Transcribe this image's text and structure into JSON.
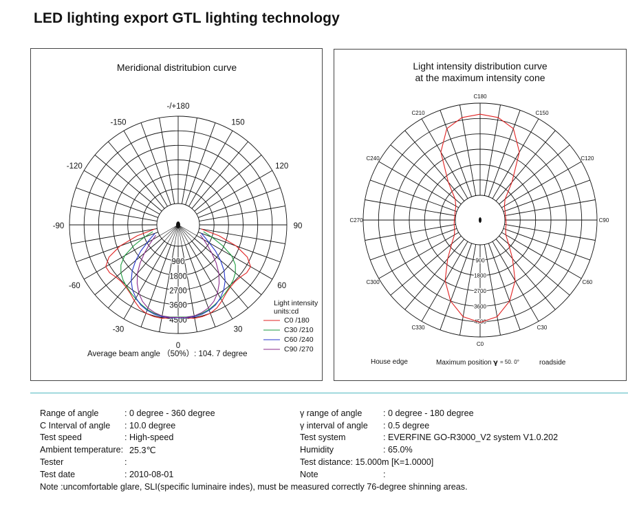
{
  "page_title": "LED lighting export GTL lighting technology",
  "colors": {
    "red": "#e02020",
    "green": "#1a9a3c",
    "blue": "#2233cc",
    "purple": "#8a2a8a",
    "divider": "#4fb8c0"
  },
  "chart_data": [
    {
      "type": "polar",
      "title": "Meridional distritubion curve",
      "angle_labels": [
        {
          "deg": 180,
          "text": "-/+180"
        },
        {
          "deg": -150,
          "text": "-150"
        },
        {
          "deg": 150,
          "text": "150"
        },
        {
          "deg": -120,
          "text": "-120"
        },
        {
          "deg": 120,
          "text": "120"
        },
        {
          "deg": -90,
          "text": "-90"
        },
        {
          "deg": 90,
          "text": "90"
        },
        {
          "deg": -60,
          "text": "-60"
        },
        {
          "deg": 60,
          "text": "60"
        },
        {
          "deg": -30,
          "text": "-30"
        },
        {
          "deg": 30,
          "text": "30"
        },
        {
          "deg": 0,
          "text": "0"
        }
      ],
      "radial_labels": [
        "900",
        "1800",
        "2700",
        "3600",
        "4500"
      ],
      "rmax": 5400,
      "legend_title": "Light intensity",
      "legend_units": "units:cd",
      "series": [
        {
          "name": "C0  /180",
          "color": "red",
          "points": [
            [
              -80,
              140
            ],
            [
              -75,
              1300
            ],
            [
              -70,
              2500
            ],
            [
              -65,
              3400
            ],
            [
              -60,
              3850
            ],
            [
              -55,
              3850
            ],
            [
              -50,
              3700
            ],
            [
              -45,
              3650
            ],
            [
              -40,
              3700
            ],
            [
              -35,
              3850
            ],
            [
              -30,
              4100
            ],
            [
              -25,
              4350
            ],
            [
              -20,
              4500
            ],
            [
              -15,
              4550
            ],
            [
              -10,
              4550
            ],
            [
              -5,
              4450
            ],
            [
              0,
              4400
            ],
            [
              5,
              4450
            ],
            [
              10,
              4550
            ],
            [
              15,
              4550
            ],
            [
              20,
              4500
            ],
            [
              25,
              4350
            ],
            [
              30,
              4100
            ],
            [
              35,
              3850
            ],
            [
              40,
              3700
            ],
            [
              45,
              3650
            ],
            [
              50,
              3700
            ],
            [
              55,
              3850
            ],
            [
              60,
              3850
            ],
            [
              65,
              3400
            ],
            [
              70,
              2500
            ],
            [
              75,
              1300
            ],
            [
              80,
              140
            ]
          ]
        },
        {
          "name": "C30  /210",
          "color": "green",
          "points": [
            [
              -75,
              300
            ],
            [
              -70,
              900
            ],
            [
              -65,
              1700
            ],
            [
              -60,
              2500
            ],
            [
              -55,
              3000
            ],
            [
              -50,
              3300
            ],
            [
              -45,
              3500
            ],
            [
              -40,
              3650
            ],
            [
              -35,
              3800
            ],
            [
              -30,
              3950
            ],
            [
              -25,
              4100
            ],
            [
              -20,
              4250
            ],
            [
              -15,
              4350
            ],
            [
              -10,
              4400
            ],
            [
              -5,
              4400
            ],
            [
              0,
              4380
            ],
            [
              5,
              4400
            ],
            [
              10,
              4400
            ],
            [
              15,
              4350
            ],
            [
              20,
              4250
            ],
            [
              25,
              4100
            ],
            [
              30,
              3950
            ],
            [
              35,
              3800
            ],
            [
              40,
              3650
            ],
            [
              45,
              3500
            ],
            [
              50,
              3300
            ],
            [
              55,
              3000
            ],
            [
              60,
              2500
            ],
            [
              65,
              1700
            ],
            [
              70,
              900
            ],
            [
              75,
              300
            ]
          ]
        },
        {
          "name": "C60  /240",
          "color": "blue",
          "points": [
            [
              -70,
              200
            ],
            [
              -65,
              500
            ],
            [
              -60,
              900
            ],
            [
              -55,
              1500
            ],
            [
              -50,
              2100
            ],
            [
              -45,
              2700
            ],
            [
              -40,
              3200
            ],
            [
              -35,
              3600
            ],
            [
              -30,
              3900
            ],
            [
              -25,
              4150
            ],
            [
              -20,
              4300
            ],
            [
              -15,
              4400
            ],
            [
              -10,
              4450
            ],
            [
              -5,
              4450
            ],
            [
              0,
              4420
            ],
            [
              5,
              4450
            ],
            [
              10,
              4450
            ],
            [
              15,
              4400
            ],
            [
              20,
              4300
            ],
            [
              25,
              4150
            ],
            [
              30,
              3900
            ],
            [
              35,
              3600
            ],
            [
              40,
              3200
            ],
            [
              45,
              2700
            ],
            [
              50,
              2100
            ],
            [
              55,
              1500
            ],
            [
              60,
              900
            ],
            [
              65,
              500
            ],
            [
              70,
              200
            ]
          ]
        },
        {
          "name": "C90  /270",
          "color": "purple",
          "points": [
            [
              -65,
              200
            ],
            [
              -60,
              500
            ],
            [
              -55,
              900
            ],
            [
              -50,
              1400
            ],
            [
              -45,
              2000
            ],
            [
              -40,
              2600
            ],
            [
              -35,
              3100
            ],
            [
              -30,
              3550
            ],
            [
              -25,
              3900
            ],
            [
              -20,
              4150
            ],
            [
              -15,
              4300
            ],
            [
              -10,
              4400
            ],
            [
              -5,
              4420
            ],
            [
              0,
              4400
            ],
            [
              5,
              4420
            ],
            [
              10,
              4400
            ],
            [
              15,
              4300
            ],
            [
              20,
              4150
            ],
            [
              25,
              3900
            ],
            [
              30,
              3550
            ],
            [
              35,
              3100
            ],
            [
              40,
              2600
            ],
            [
              45,
              2000
            ],
            [
              50,
              1400
            ],
            [
              55,
              900
            ],
            [
              60,
              500
            ],
            [
              65,
              200
            ]
          ]
        }
      ],
      "annotations": {
        "average_beam_angle": "Average beam angle  （50%）: 104. 7 degree"
      }
    },
    {
      "type": "polar",
      "title_line1": "Light intensity distribution curve",
      "title_line2": "at the maximum intensity cone",
      "angle_labels": [
        {
          "deg": 180,
          "text": "C180"
        },
        {
          "deg": 150,
          "text": "C150"
        },
        {
          "deg": 120,
          "text": "C120"
        },
        {
          "deg": 90,
          "text": "C90"
        },
        {
          "deg": 60,
          "text": "C60"
        },
        {
          "deg": 30,
          "text": "C30"
        },
        {
          "deg": 0,
          "text": "C0"
        },
        {
          "deg": -30,
          "text": "C330"
        },
        {
          "deg": -60,
          "text": "C300"
        },
        {
          "deg": -90,
          "text": "C270"
        },
        {
          "deg": -120,
          "text": "C240"
        },
        {
          "deg": -150,
          "text": "C210"
        }
      ],
      "radial_labels": [
        "900",
        "1800",
        "2700",
        "3600",
        "4500"
      ],
      "rmax": 5400,
      "series": [
        {
          "name": "",
          "color": "red",
          "points": [
            [
              0,
              4550
            ],
            [
              10,
              4300
            ],
            [
              20,
              3600
            ],
            [
              30,
              2650
            ],
            [
              40,
              1500
            ],
            [
              50,
              720
            ],
            [
              60,
              290
            ],
            [
              70,
              140
            ],
            [
              80,
              90
            ],
            [
              90,
              60
            ],
            [
              100,
              60
            ],
            [
              110,
              100
            ],
            [
              120,
              190
            ],
            [
              130,
              460
            ],
            [
              140,
              1450
            ],
            [
              150,
              3150
            ],
            [
              160,
              4250
            ],
            [
              170,
              4650
            ],
            [
              180,
              4750
            ],
            [
              190,
              4650
            ],
            [
              200,
              4250
            ],
            [
              210,
              3150
            ],
            [
              220,
              1450
            ],
            [
              230,
              460
            ],
            [
              240,
              190
            ],
            [
              250,
              100
            ],
            [
              260,
              60
            ],
            [
              270,
              60
            ],
            [
              280,
              90
            ],
            [
              290,
              140
            ],
            [
              300,
              290
            ],
            [
              310,
              720
            ],
            [
              320,
              1500
            ],
            [
              330,
              2650
            ],
            [
              340,
              3600
            ],
            [
              350,
              4300
            ]
          ]
        }
      ],
      "annotations": {
        "house_edge": "House edge",
        "roadside": "roadside",
        "max_position_label": "Maximum position",
        "max_position_symbol": "γ",
        "max_position_value": "= 50. 0°"
      }
    }
  ],
  "specs": {
    "left": [
      {
        "label": "Range of angle",
        "value": ": 0 degree - 360 degree"
      },
      {
        "label": "C Interval of angle",
        "value": ": 10.0 degree"
      },
      {
        "label": "Test speed",
        "value": ": High-speed"
      },
      {
        "label": "Ambient temperature:",
        "value": "25.3℃"
      },
      {
        "label": "Tester",
        "value": ":"
      },
      {
        "label": "Test date",
        "value": ": 2010-08-01"
      }
    ],
    "right": [
      {
        "label": "γ range of angle",
        "value": ": 0 degree - 180 degree"
      },
      {
        "label": "γ interval of angle",
        "value": ": 0.5 degree"
      },
      {
        "label": "Test system",
        "value": ": EVERFINE GO-R3000_V2 system V1.0.202"
      },
      {
        "label": "Humidity",
        "value": ": 65.0%"
      },
      {
        "label": "Test distance: 15.000m [K=1.0000]",
        "value": ""
      },
      {
        "label": "Note",
        "value": ":"
      }
    ],
    "note": "Note :uncomfortable glare, SLI(specific luminaire indes), must be measured correctly 76-degree shinning areas."
  }
}
